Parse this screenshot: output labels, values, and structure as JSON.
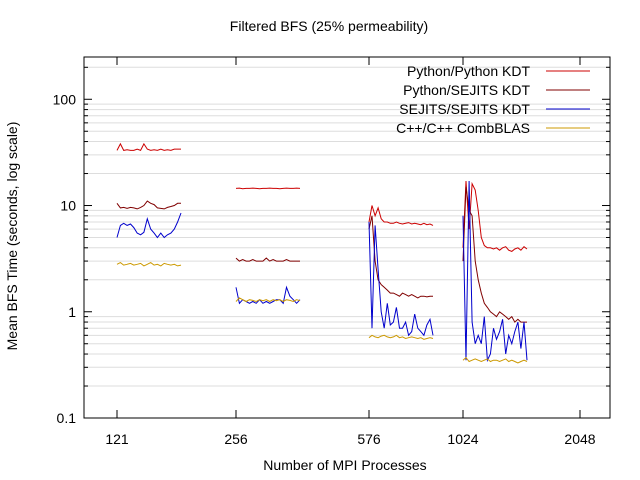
{
  "chart_data": {
    "type": "line",
    "title": "Filtered BFS (25% permeability)",
    "xlabel": "Number of MPI Processes",
    "ylabel": "Mean BFS Time (seconds, log scale)",
    "x_scale": "categorical",
    "y_scale": "log",
    "ylim": [
      0.1,
      250
    ],
    "categories": [
      "121",
      "256",
      "576",
      "1024",
      "2048"
    ],
    "y_ticks": [
      0.1,
      1,
      10,
      100
    ],
    "y_tick_labels": [
      "0.1",
      "1",
      "10",
      "100"
    ],
    "grid": "horizontal minor gridlines",
    "legend_position": "top-right",
    "colors": {
      "Python/Python KDT": "#cc0000",
      "Python/SEJITS KDT": "#800000",
      "SEJITS/SEJITS KDT": "#0000cc",
      "C++/C++ CombBLAS": "#cc9900"
    },
    "series": [
      {
        "name": "Python/Python KDT",
        "groups": [
          {
            "category": "121",
            "values": [
              33,
              38,
              33,
              33.5,
              33,
              33,
              34,
              33,
              38,
              34,
              33,
              33.5,
              33,
              34,
              33,
              33.5,
              33,
              34,
              34,
              34
            ]
          },
          {
            "category": "256",
            "values": [
              14.5,
              14.6,
              14.4,
              14.5,
              14.5,
              14.6,
              14.5,
              14.4,
              14.5,
              14.5,
              14.6,
              14.5,
              14.5,
              14.4,
              14.5,
              14.6,
              14.5,
              14.5,
              14.6,
              14.5
            ]
          },
          {
            "category": "576",
            "values": [
              7,
              10,
              8,
              9.5,
              7.5,
              7,
              7,
              6.8,
              6.8,
              7,
              6.8,
              6.7,
              6.8,
              6.9,
              6.7,
              6.8,
              6.7,
              6.6,
              6.8,
              6.6,
              6.7,
              6.5
            ]
          },
          {
            "category": "1024",
            "values": [
              4,
              17,
              6,
              16,
              14,
              9,
              5,
              4.2,
              4,
              4,
              3.9,
              4,
              3.8,
              4,
              4.1,
              3.8,
              3.7,
              3.9,
              4,
              3.8,
              4.1,
              3.9
            ]
          }
        ]
      },
      {
        "name": "Python/SEJITS KDT",
        "groups": [
          {
            "category": "121",
            "values": [
              10.5,
              9.5,
              9.6,
              9.4,
              9.6,
              9.5,
              9.3,
              9.6,
              10,
              11,
              10.5,
              10.2,
              9.5,
              9.4,
              9.3,
              9.6,
              9.8,
              10,
              10.5,
              10.5
            ]
          },
          {
            "category": "256",
            "values": [
              3.2,
              3,
              3.1,
              3,
              3,
              3.1,
              3,
              3,
              3,
              3.2,
              3,
              3.1,
              3,
              3,
              3,
              3.1,
              3,
              3,
              3,
              3
            ]
          },
          {
            "category": "576",
            "values": [
              6,
              8,
              3,
              2,
              1.8,
              1.7,
              1.6,
              1.5,
              1.5,
              1.45,
              1.4,
              1.5,
              1.45,
              1.4,
              1.45,
              1.4,
              1.35,
              1.4,
              1.4,
              1.38,
              1.4,
              1.4
            ]
          },
          {
            "category": "1024",
            "values": [
              3,
              15,
              9,
              8,
              3,
              2,
              1.5,
              1.2,
              1.1,
              1,
              0.95,
              0.9,
              1,
              0.95,
              0.9,
              0.85,
              0.9,
              0.8,
              0.85,
              0.8,
              0.8,
              0.8
            ]
          }
        ]
      },
      {
        "name": "SEJITS/SEJITS KDT",
        "groups": [
          {
            "category": "121",
            "values": [
              5,
              6.5,
              6.8,
              6.5,
              6.7,
              6.2,
              5.5,
              5.3,
              5.6,
              7.5,
              6,
              5.5,
              5,
              5.5,
              5,
              5.3,
              5.5,
              6,
              7,
              8.5
            ]
          },
          {
            "category": "256",
            "values": [
              1.7,
              1.2,
              1.3,
              1.25,
              1.2,
              1.25,
              1.2,
              1.3,
              1.2,
              1.25,
              1.2,
              1.25,
              1.3,
              1.3,
              1.2,
              1.7,
              1.4,
              1.3,
              1.2,
              1.3
            ]
          },
          {
            "category": "576",
            "values": [
              7,
              0.7,
              6.5,
              2.5,
              1,
              0.7,
              1.2,
              0.75,
              0.8,
              1.1,
              0.7,
              0.7,
              0.8,
              0.6,
              0.65,
              0.95,
              0.7,
              0.65,
              0.6,
              0.75,
              0.85,
              0.6
            ]
          },
          {
            "category": "1024",
            "values": [
              8,
              0.35,
              17,
              0.8,
              0.5,
              0.6,
              0.5,
              0.9,
              0.35,
              0.4,
              0.7,
              0.55,
              0.65,
              0.85,
              0.4,
              0.6,
              0.5,
              0.65,
              0.8,
              0.45,
              0.8,
              0.35
            ]
          }
        ]
      },
      {
        "name": "C++/C++ CombBLAS",
        "groups": [
          {
            "category": "121",
            "values": [
              2.8,
              2.9,
              2.75,
              2.8,
              2.85,
              2.75,
              2.8,
              2.85,
              2.7,
              2.8,
              2.9,
              2.75,
              2.8,
              2.7,
              2.85,
              2.8,
              2.75,
              2.8,
              2.7,
              2.75
            ]
          },
          {
            "category": "256",
            "values": [
              1.25,
              1.35,
              1.3,
              1.25,
              1.3,
              1.28,
              1.25,
              1.3,
              1.27,
              1.3,
              1.25,
              1.3,
              1.27,
              1.3,
              1.25,
              1.3,
              1.28,
              1.25,
              1.3,
              1.27
            ]
          },
          {
            "category": "576",
            "values": [
              0.57,
              0.6,
              0.58,
              0.57,
              0.59,
              0.6,
              0.58,
              0.57,
              0.58,
              0.6,
              0.57,
              0.58,
              0.56,
              0.57,
              0.58,
              0.57,
              0.56,
              0.57,
              0.55,
              0.56,
              0.57,
              0.56
            ]
          },
          {
            "category": "1024",
            "values": [
              0.35,
              0.37,
              0.34,
              0.35,
              0.36,
              0.35,
              0.34,
              0.35,
              0.36,
              0.34,
              0.35,
              0.35,
              0.34,
              0.35,
              0.36,
              0.34,
              0.35,
              0.34,
              0.33,
              0.34,
              0.35,
              0.34
            ]
          }
        ]
      }
    ]
  }
}
